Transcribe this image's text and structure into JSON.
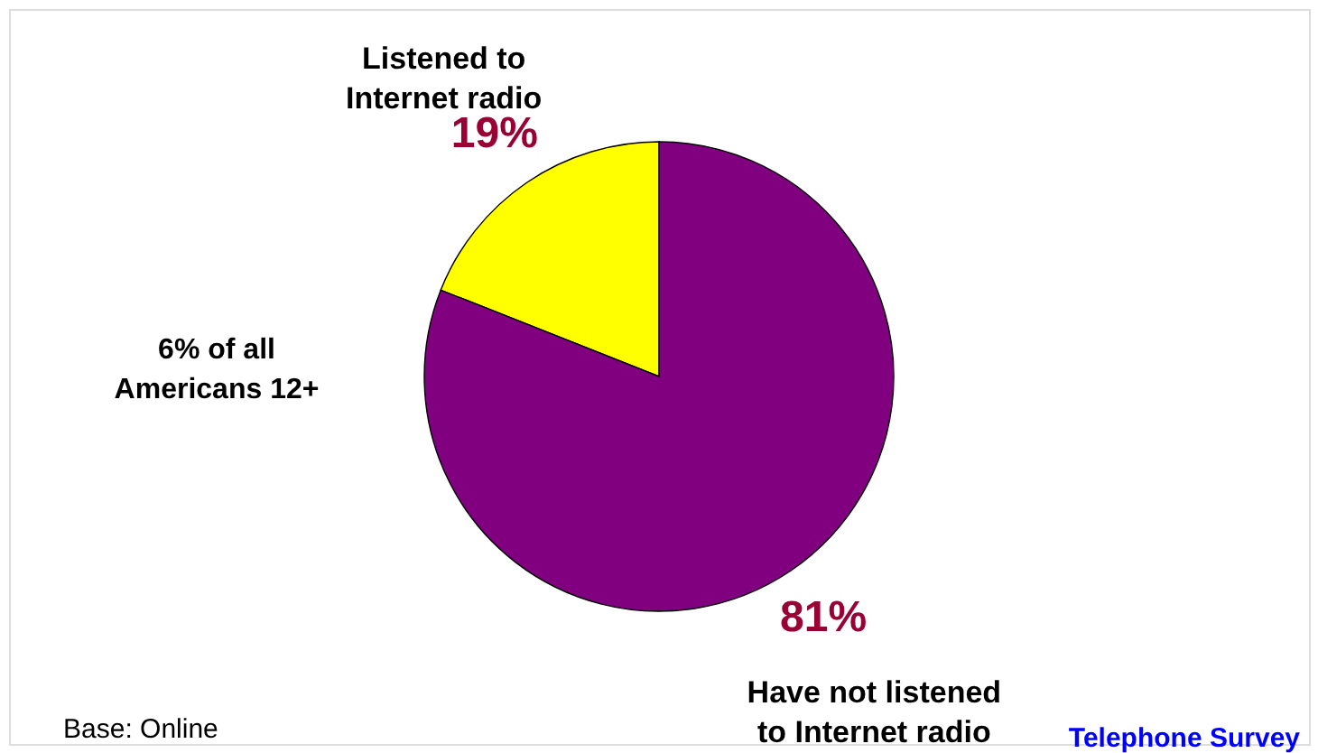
{
  "chart_data": {
    "type": "pie",
    "categories": [
      "Listened to Internet radio",
      "Have not listened to Internet radio"
    ],
    "values": [
      19,
      81
    ],
    "colors": [
      "#ffff00",
      "#800080"
    ],
    "value_labels": [
      "19%",
      "81%"
    ],
    "annotations": [
      "6% of all Americans 12+",
      "Base: Online",
      "Telephone Survey"
    ],
    "legend": false
  }
}
